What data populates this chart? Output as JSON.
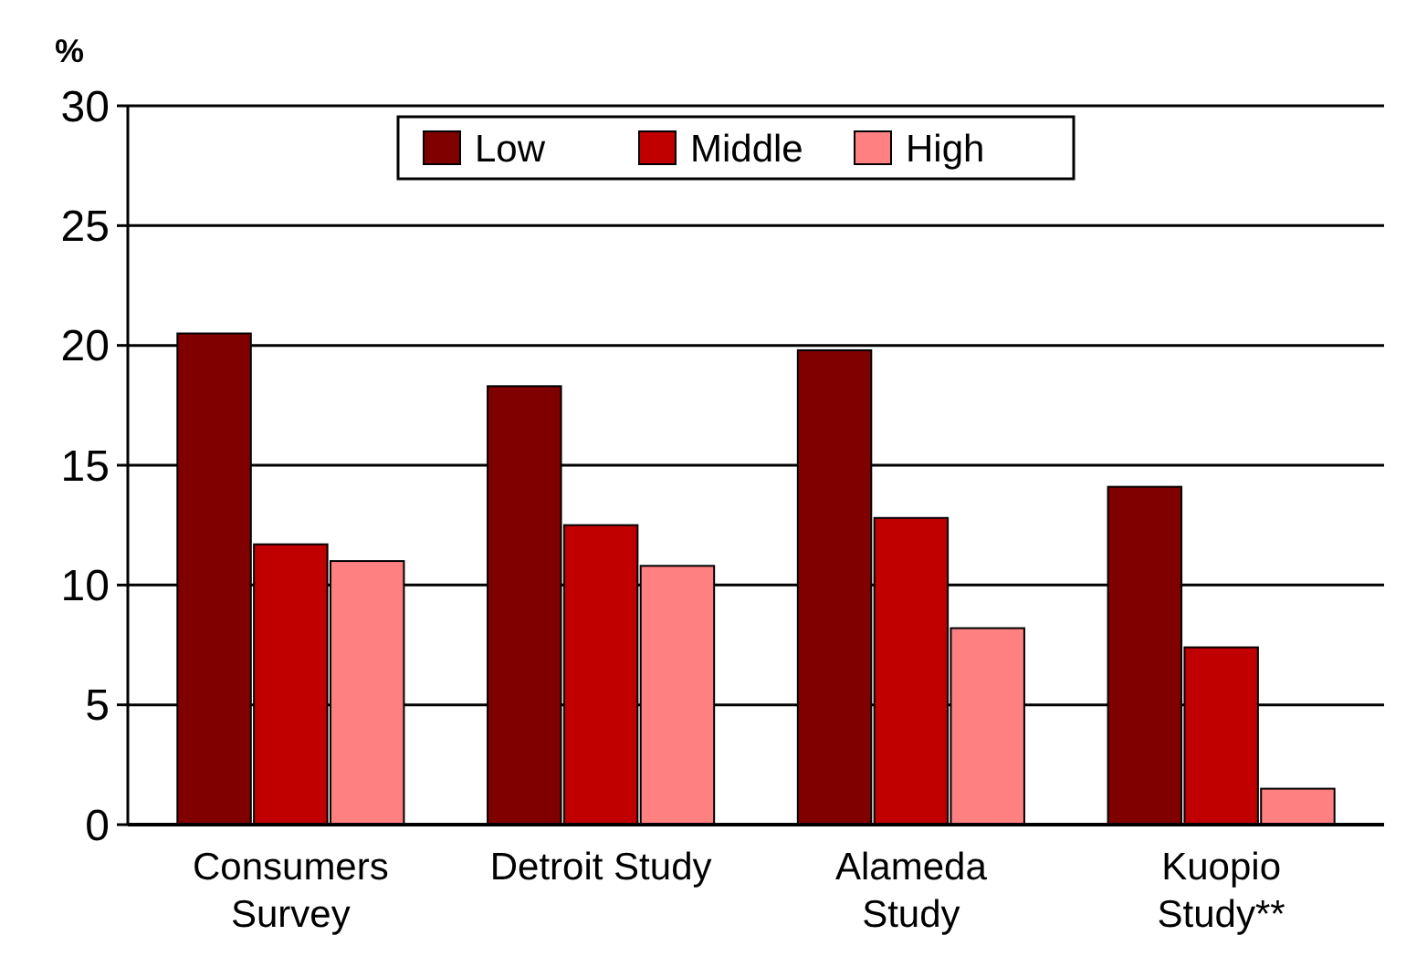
{
  "chart_data": {
    "type": "bar",
    "ylabel": "%",
    "categories": [
      "Consumers\nSurvey",
      "Detroit Study",
      "Alameda\nStudy",
      "Kuopio\nStudy**"
    ],
    "series": [
      {
        "name": "Low",
        "color": "#800000",
        "values": [
          20.5,
          18.3,
          19.8,
          14.1
        ]
      },
      {
        "name": "Middle",
        "color": "#c00000",
        "values": [
          11.7,
          12.5,
          12.8,
          7.4
        ]
      },
      {
        "name": "High",
        "color": "#ff8080",
        "values": [
          11.0,
          10.8,
          8.2,
          1.5
        ]
      }
    ],
    "ylim": [
      0,
      30
    ],
    "yticks": [
      0,
      5,
      10,
      15,
      20,
      25,
      30
    ],
    "grid": "y",
    "legend": "top"
  }
}
